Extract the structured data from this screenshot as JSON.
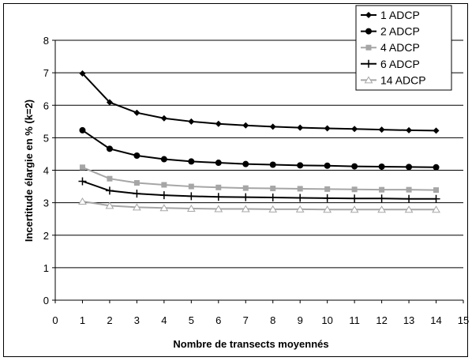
{
  "chart_data": {
    "type": "line",
    "title": "",
    "xlabel": "Nombre de transects moyennés",
    "ylabel": "Incertitude élargie en % (k=2)",
    "xlim": [
      0,
      15
    ],
    "ylim": [
      0,
      8
    ],
    "x_ticks": [
      0,
      1,
      2,
      3,
      4,
      5,
      6,
      7,
      8,
      9,
      10,
      11,
      12,
      13,
      14,
      15
    ],
    "y_ticks": [
      0,
      1,
      2,
      3,
      4,
      5,
      6,
      7,
      8
    ],
    "grid": "horizontal",
    "legend_position": "top-right",
    "x": [
      1,
      2,
      3,
      4,
      5,
      6,
      7,
      8,
      9,
      10,
      11,
      12,
      13,
      14
    ],
    "series": [
      {
        "name": "1 ADCP",
        "color": "#000000",
        "marker": "diamond",
        "values": [
          6.98,
          6.09,
          5.77,
          5.6,
          5.5,
          5.43,
          5.38,
          5.34,
          5.31,
          5.29,
          5.27,
          5.25,
          5.23,
          5.22
        ]
      },
      {
        "name": "2 ADCP",
        "color": "#000000",
        "marker": "circle",
        "values": [
          5.23,
          4.66,
          4.45,
          4.34,
          4.27,
          4.23,
          4.19,
          4.17,
          4.15,
          4.14,
          4.12,
          4.11,
          4.1,
          4.09
        ]
      },
      {
        "name": "4 ADCP",
        "color": "#a6a6a6",
        "marker": "square",
        "values": [
          4.09,
          3.74,
          3.61,
          3.55,
          3.5,
          3.47,
          3.45,
          3.44,
          3.43,
          3.42,
          3.41,
          3.4,
          3.4,
          3.39
        ]
      },
      {
        "name": "6 ADCP",
        "color": "#000000",
        "marker": "plus",
        "values": [
          3.66,
          3.37,
          3.28,
          3.23,
          3.2,
          3.18,
          3.17,
          3.16,
          3.15,
          3.14,
          3.13,
          3.13,
          3.12,
          3.12
        ]
      },
      {
        "name": "14 ADCP",
        "color": "#a6a6a6",
        "marker": "triangle",
        "values": [
          3.04,
          2.91,
          2.86,
          2.84,
          2.82,
          2.81,
          2.81,
          2.8,
          2.8,
          2.79,
          2.79,
          2.79,
          2.79,
          2.79
        ]
      }
    ]
  }
}
